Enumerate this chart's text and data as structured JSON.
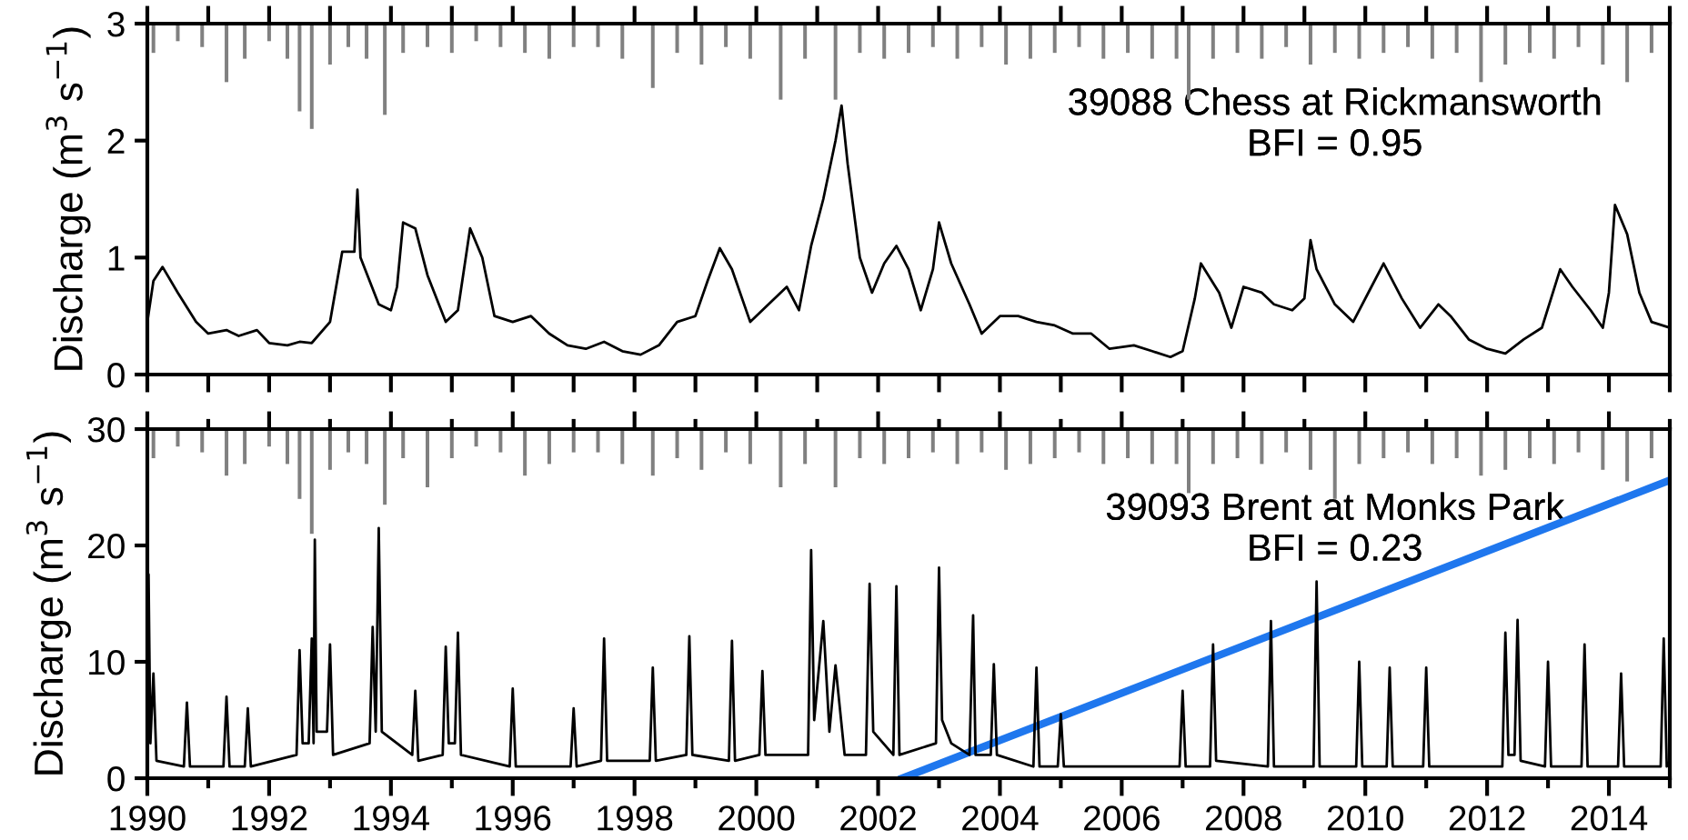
{
  "chart_data": [
    {
      "type": "line",
      "ylabel": "Discharge (m$^{3}$ s$^{−1}$)",
      "annotations": [
        "39088 Chess at Rickmansworth\nBFI = 0.95"
      ],
      "xlim": [
        1990,
        2015
      ],
      "xticks": [
        {
          "value": 1990,
          "label": null
        },
        {
          "value": 1991,
          "label": null
        },
        {
          "value": 1992,
          "label": null
        },
        {
          "value": 1993,
          "label": null
        },
        {
          "value": 1994,
          "label": null
        },
        {
          "value": 1995,
          "label": null
        },
        {
          "value": 1996,
          "label": null
        },
        {
          "value": 1997,
          "label": null
        },
        {
          "value": 1998,
          "label": null
        },
        {
          "value": 1999,
          "label": null
        },
        {
          "value": 2000,
          "label": null
        },
        {
          "value": 2001,
          "label": null
        },
        {
          "value": 2002,
          "label": null
        },
        {
          "value": 2003,
          "label": null
        },
        {
          "value": 2004,
          "label": null
        },
        {
          "value": 2005,
          "label": null
        },
        {
          "value": 2006,
          "label": null
        },
        {
          "value": 2007,
          "label": null
        },
        {
          "value": 2008,
          "label": null
        },
        {
          "value": 2009,
          "label": null
        },
        {
          "value": 2010,
          "label": null
        },
        {
          "value": 2011,
          "label": null
        },
        {
          "value": 2012,
          "label": null
        },
        {
          "value": 2013,
          "label": null
        },
        {
          "value": 2014,
          "label": null
        },
        {
          "value": 2015,
          "label": null
        }
      ],
      "ylim": [
        0,
        3
      ],
      "yticks": [
        0,
        1,
        2,
        3
      ],
      "tick_labels": "y",
      "grid": false,
      "series": [
        {
          "type": "bar",
          "color": "#808080",
          "x": [
            1990.1,
            1990.5,
            1990.9,
            1991.3,
            1991.6,
            1992.0,
            1992.3,
            1992.5,
            1992.7,
            1993.0,
            1993.3,
            1993.6,
            1993.9,
            1994.2,
            1994.6,
            1995.0,
            1995.4,
            1995.8,
            1996.2,
            1996.6,
            1997.0,
            1997.4,
            1997.8,
            1998.3,
            1998.7,
            1999.1,
            1999.5,
            1999.9,
            2000.4,
            2000.8,
            2001.3,
            2001.7,
            2002.1,
            2002.5,
            2002.9,
            2003.3,
            2003.7,
            2004.1,
            2004.5,
            2004.9,
            2005.3,
            2005.7,
            2006.1,
            2006.5,
            2006.9,
            2007.1,
            2007.5,
            2007.9,
            2008.3,
            2008.7,
            2009.1,
            2009.5,
            2009.9,
            2010.3,
            2010.7,
            2011.1,
            2011.5,
            2011.9,
            2012.3,
            2012.7,
            2013.1,
            2013.5,
            2013.9,
            2014.3,
            2014.7
          ],
          "base": [
            3,
            3,
            3,
            3,
            3,
            3,
            3,
            3,
            3,
            3,
            3,
            3,
            3,
            3,
            3,
            3,
            3,
            3,
            3,
            3,
            3,
            3,
            3,
            3,
            3,
            3,
            3,
            3,
            3,
            3,
            3,
            3,
            3,
            3,
            3,
            3,
            3,
            3,
            3,
            3,
            3,
            3,
            3,
            3,
            3,
            3,
            3,
            3,
            3,
            3,
            3,
            3,
            3,
            3,
            3,
            3,
            3,
            3,
            3,
            3,
            3,
            3,
            3,
            3,
            3
          ],
          "values": [
            -0.25,
            -0.15,
            -0.2,
            -0.5,
            -0.3,
            -0.15,
            -0.3,
            -0.75,
            -0.9,
            -0.35,
            -0.2,
            -0.3,
            -0.78,
            -0.25,
            -0.2,
            -0.25,
            -0.15,
            -0.2,
            -0.25,
            -0.3,
            -0.2,
            -0.2,
            -0.3,
            -0.55,
            -0.25,
            -0.35,
            -0.2,
            -0.3,
            -0.65,
            -0.3,
            -0.65,
            -0.25,
            -0.3,
            -0.25,
            -0.2,
            -0.3,
            -0.2,
            -0.35,
            -0.3,
            -0.25,
            -0.2,
            -0.3,
            -0.25,
            -0.3,
            -0.3,
            -0.65,
            -0.3,
            -0.25,
            -0.3,
            -0.2,
            -0.35,
            -0.25,
            -0.3,
            -0.25,
            -0.2,
            -0.3,
            -0.25,
            -0.5,
            -0.35,
            -0.25,
            -0.3,
            -0.2,
            -0.35,
            -0.5,
            -0.25
          ]
        },
        {
          "color": "#000000",
          "x": [
            1990.0,
            1990.1,
            1990.25,
            1990.5,
            1990.8,
            1991.0,
            1991.3,
            1991.5,
            1991.8,
            1992.0,
            1992.3,
            1992.5,
            1992.7,
            1993.0,
            1993.2,
            1993.4,
            1993.45,
            1993.5,
            1993.8,
            1994.0,
            1994.1,
            1994.2,
            1994.4,
            1994.6,
            1994.9,
            1995.1,
            1995.3,
            1995.5,
            1995.7,
            1996.0,
            1996.3,
            1996.6,
            1996.9,
            1997.2,
            1997.5,
            1997.8,
            1998.1,
            1998.4,
            1998.7,
            1999.0,
            1999.2,
            1999.4,
            1999.6,
            1999.9,
            2000.2,
            2000.5,
            2000.7,
            2000.9,
            2001.1,
            2001.3,
            2001.4,
            2001.5,
            2001.7,
            2001.9,
            2002.1,
            2002.3,
            2002.5,
            2002.7,
            2002.9,
            2003.0,
            2003.2,
            2003.5,
            2003.7,
            2004.0,
            2004.3,
            2004.6,
            2004.9,
            2005.2,
            2005.5,
            2005.8,
            2006.2,
            2006.5,
            2006.8,
            2007.0,
            2007.2,
            2007.3,
            2007.6,
            2007.8,
            2008.0,
            2008.3,
            2008.5,
            2008.8,
            2009.0,
            2009.1,
            2009.2,
            2009.5,
            2009.8,
            2010.1,
            2010.3,
            2010.6,
            2010.9,
            2011.2,
            2011.4,
            2011.7,
            2012.0,
            2012.3,
            2012.6,
            2012.9,
            2013.2,
            2013.4,
            2013.7,
            2013.9,
            2014.0,
            2014.1,
            2014.3,
            2014.5,
            2014.7,
            2015.0
          ],
          "values": [
            0.45,
            0.8,
            0.92,
            0.7,
            0.45,
            0.35,
            0.38,
            0.33,
            0.38,
            0.27,
            0.25,
            0.28,
            0.27,
            0.45,
            1.05,
            1.05,
            1.58,
            1.0,
            0.6,
            0.55,
            0.75,
            1.3,
            1.25,
            0.85,
            0.45,
            0.55,
            1.25,
            1.0,
            0.5,
            0.45,
            0.5,
            0.35,
            0.25,
            0.22,
            0.28,
            0.2,
            0.17,
            0.25,
            0.45,
            0.5,
            0.8,
            1.08,
            0.9,
            0.45,
            0.6,
            0.75,
            0.55,
            1.1,
            1.5,
            2.0,
            2.3,
            1.8,
            1.0,
            0.7,
            0.95,
            1.1,
            0.9,
            0.55,
            0.9,
            1.3,
            0.95,
            0.6,
            0.35,
            0.5,
            0.5,
            0.45,
            0.42,
            0.35,
            0.35,
            0.22,
            0.25,
            0.2,
            0.15,
            0.2,
            0.65,
            0.95,
            0.7,
            0.4,
            0.75,
            0.7,
            0.6,
            0.55,
            0.65,
            1.15,
            0.9,
            0.6,
            0.45,
            0.75,
            0.95,
            0.65,
            0.4,
            0.6,
            0.5,
            0.3,
            0.22,
            0.18,
            0.3,
            0.4,
            0.9,
            0.75,
            0.55,
            0.4,
            0.7,
            1.45,
            1.2,
            0.7,
            0.45,
            0.4
          ]
        }
      ]
    },
    {
      "type": "line",
      "ylabel": "Discharge (m$^{3}$ s$^{−1}$)",
      "annotations": [
        "39093 Brent at Monks Park\nBFI = 0.23"
      ],
      "xlim": [
        1990,
        2015
      ],
      "xticks": [
        1990,
        {
          "value": 1991,
          "label": null
        },
        1992,
        {
          "value": 1993,
          "label": null
        },
        1994,
        {
          "value": 1995,
          "label": null
        },
        1996,
        {
          "value": 1997,
          "label": null
        },
        1998,
        {
          "value": 1999,
          "label": null
        },
        2000,
        {
          "value": 2001,
          "label": null
        },
        2002,
        {
          "value": 2003,
          "label": null
        },
        2004,
        {
          "value": 2005,
          "label": null
        },
        2006,
        {
          "value": 2007,
          "label": null
        },
        2008,
        {
          "value": 2009,
          "label": null
        },
        2010,
        {
          "value": 2011,
          "label": null
        },
        2012,
        {
          "value": 2013,
          "label": null
        },
        2014,
        {
          "value": 2015,
          "label": null
        }
      ],
      "ylim": [
        0,
        30
      ],
      "yticks": [
        0,
        10,
        20,
        30
      ],
      "grid": false,
      "series": [
        {
          "type": "bar",
          "color": "#808080",
          "x": [
            1990.1,
            1990.5,
            1990.9,
            1991.3,
            1991.6,
            1992.0,
            1992.3,
            1992.5,
            1992.7,
            1993.0,
            1993.3,
            1993.6,
            1993.9,
            1994.2,
            1994.6,
            1995.0,
            1995.4,
            1995.8,
            1996.2,
            1996.6,
            1997.0,
            1997.4,
            1997.8,
            1998.3,
            1998.7,
            1999.1,
            1999.5,
            1999.9,
            2000.4,
            2000.8,
            2001.3,
            2001.7,
            2002.1,
            2002.5,
            2002.9,
            2003.3,
            2003.7,
            2004.1,
            2004.5,
            2004.9,
            2005.3,
            2005.7,
            2006.1,
            2006.5,
            2006.9,
            2007.1,
            2007.5,
            2007.9,
            2008.3,
            2008.7,
            2009.1,
            2009.5,
            2009.9,
            2010.3,
            2010.7,
            2011.1,
            2011.5,
            2011.9,
            2012.3,
            2012.7,
            2013.1,
            2013.5,
            2013.9,
            2014.3,
            2014.7
          ],
          "base": [
            30,
            30,
            30,
            30,
            30,
            30,
            30,
            30,
            30,
            30,
            30,
            30,
            30,
            30,
            30,
            30,
            30,
            30,
            30,
            30,
            30,
            30,
            30,
            30,
            30,
            30,
            30,
            30,
            30,
            30,
            30,
            30,
            30,
            30,
            30,
            30,
            30,
            30,
            30,
            30,
            30,
            30,
            30,
            30,
            30,
            30,
            30,
            30,
            30,
            30,
            30,
            30,
            30,
            30,
            30,
            30,
            30,
            30,
            30,
            30,
            30,
            30,
            30,
            30,
            30
          ],
          "values": [
            -2.5,
            -1.5,
            -2,
            -4,
            -3,
            -1.5,
            -3,
            -6,
            -9,
            -3.5,
            -2,
            -3,
            -6.5,
            -2.5,
            -5,
            -2.5,
            -1.5,
            -2,
            -4,
            -3,
            -2,
            -2,
            -3,
            -4,
            -2.5,
            -3.5,
            -2,
            -3,
            -5,
            -3,
            -5,
            -2.5,
            -3,
            -2.5,
            -2,
            -3,
            -2,
            -3.5,
            -3,
            -2.5,
            -2,
            -3,
            -2.5,
            -3,
            -3,
            -5.5,
            -3,
            -2.5,
            -3,
            -2,
            -3.5,
            -6,
            -3,
            -2.5,
            -2,
            -3,
            -2.5,
            -4,
            -3.5,
            -2.5,
            -3,
            -2,
            -3.5,
            -4.5,
            -2.5
          ]
        },
        {
          "color": "#000000",
          "x": [
            1990.0,
            1990.02,
            1990.05,
            1990.1,
            1990.15,
            1990.6,
            1990.65,
            1990.7,
            1991.25,
            1991.3,
            1991.35,
            1991.6,
            1991.65,
            1991.7,
            1992.45,
            1992.5,
            1992.55,
            1992.65,
            1992.7,
            1992.73,
            1992.75,
            1992.78,
            1992.95,
            1993.0,
            1993.05,
            1993.65,
            1993.7,
            1993.75,
            1993.8,
            1993.85,
            1994.35,
            1994.4,
            1994.45,
            1994.85,
            1994.9,
            1994.95,
            1995.05,
            1995.1,
            1995.15,
            1995.95,
            1996.0,
            1996.05,
            1996.95,
            1997.0,
            1997.05,
            1997.45,
            1997.5,
            1997.55,
            1998.25,
            1998.3,
            1998.35,
            1998.85,
            1998.9,
            1998.95,
            1999.55,
            1999.6,
            1999.65,
            2000.05,
            2000.1,
            2000.15,
            2000.85,
            2000.9,
            2000.95,
            2001.1,
            2001.2,
            2001.3,
            2001.45,
            2001.8,
            2001.86,
            2001.92,
            2002.25,
            2002.3,
            2002.35,
            2002.95,
            2003.0,
            2003.05,
            2003.2,
            2003.5,
            2003.56,
            2003.6,
            2003.85,
            2003.9,
            2003.95,
            2004.55,
            2004.6,
            2004.65,
            2004.95,
            2005.0,
            2005.05,
            2006.95,
            2007.0,
            2007.05,
            2007.45,
            2007.5,
            2007.55,
            2008.4,
            2008.45,
            2008.5,
            2009.15,
            2009.2,
            2009.25,
            2009.85,
            2009.9,
            2009.95,
            2010.35,
            2010.4,
            2010.45,
            2010.95,
            2011.0,
            2011.05,
            2012.25,
            2012.3,
            2012.35,
            2012.45,
            2012.5,
            2012.55,
            2012.95,
            2013.0,
            2013.05,
            2013.55,
            2013.6,
            2013.65,
            2014.15,
            2014.2,
            2014.25,
            2014.85,
            2014.9,
            2014.95,
            2015.0
          ],
          "values": [
            2,
            17.5,
            3,
            9,
            1.5,
            1,
            6.5,
            1,
            1,
            7,
            1,
            1,
            6,
            1,
            2,
            11,
            3,
            3,
            12,
            3,
            20.5,
            4,
            4,
            11.5,
            2,
            3,
            13,
            4,
            21.5,
            4,
            2,
            7.5,
            1.5,
            2,
            11.3,
            3,
            3,
            12.5,
            2,
            1,
            7.7,
            1,
            1,
            6,
            1,
            1.5,
            12,
            1.5,
            1.5,
            9.5,
            1.5,
            2,
            12.2,
            2,
            1.5,
            11.8,
            1.5,
            2,
            9.2,
            2,
            2,
            19.6,
            5,
            13.5,
            4,
            9.7,
            2,
            2,
            16.7,
            4,
            2,
            16.5,
            2,
            3,
            18.1,
            5,
            3,
            2,
            14,
            2,
            2,
            9.8,
            2,
            1,
            9.5,
            1,
            1,
            5.5,
            1,
            1,
            7.5,
            1,
            1,
            11.5,
            1.5,
            1,
            13.5,
            1,
            1,
            16.9,
            1,
            1,
            10,
            1,
            1,
            9.5,
            1,
            1,
            9.5,
            1,
            1,
            12.5,
            2,
            2,
            13.6,
            1.5,
            1,
            10,
            1,
            1,
            11.5,
            1,
            1,
            9,
            1,
            1,
            12,
            1,
            1.5
          ]
        },
        {
          "type": "line",
          "color": "#1f77ee",
          "x": [
            2002.4,
            2015
          ],
          "values": [
            0,
            25.6
          ]
        }
      ]
    }
  ]
}
